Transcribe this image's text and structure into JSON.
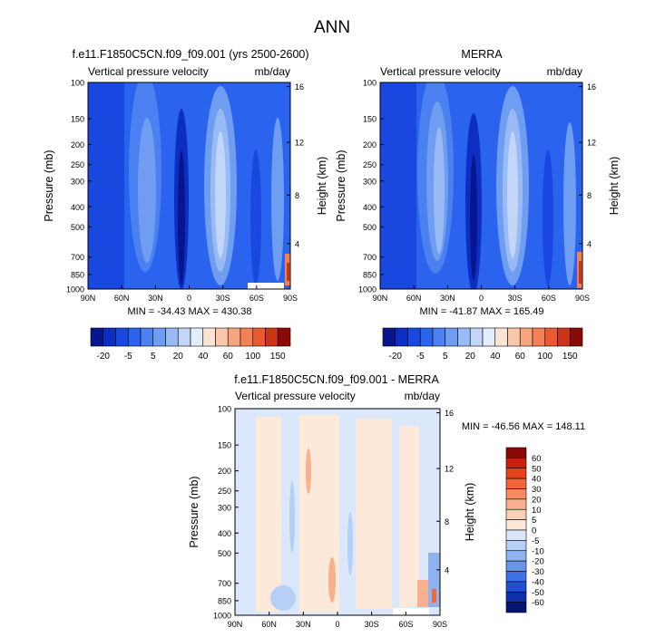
{
  "page_title": "ANN",
  "chart_data": [
    {
      "type": "heatmap",
      "title": "f.e11.F1850C5CN.f09_f09.001 (yrs 2500-2600)",
      "left_label": "Vertical pressure velocity",
      "right_label": "mb/day",
      "ylabel": "Pressure (mb)",
      "y2label": "Height (km)",
      "x_ticks": [
        "90N",
        "60N",
        "30N",
        "0",
        "30S",
        "60S",
        "90S"
      ],
      "y_ticks": [
        "100",
        "150",
        "200",
        "250",
        "300",
        "400",
        "500",
        "700",
        "850",
        "1000"
      ],
      "y2_ticks": [
        "16",
        "12",
        "8",
        "4"
      ],
      "stats": "MIN = -34.43  MAX = 430.38",
      "colorbar_labels": [
        "-20",
        "-5",
        "5",
        "20",
        "40",
        "60",
        "100",
        "150"
      ]
    },
    {
      "type": "heatmap",
      "title": "MERRA",
      "left_label": "Vertical pressure velocity",
      "right_label": "mb/day",
      "ylabel": "Pressure (mb)",
      "y2label": "Height (km)",
      "x_ticks": [
        "90N",
        "60N",
        "30N",
        "0",
        "30S",
        "60S",
        "90S"
      ],
      "y_ticks": [
        "100",
        "150",
        "200",
        "250",
        "300",
        "400",
        "500",
        "700",
        "850",
        "1000"
      ],
      "y2_ticks": [
        "16",
        "12",
        "8",
        "4"
      ],
      "stats": "MIN = -41.87  MAX = 165.49",
      "colorbar_labels": [
        "-20",
        "-5",
        "5",
        "20",
        "40",
        "60",
        "100",
        "150"
      ]
    },
    {
      "type": "heatmap",
      "title": "f.e11.F1850C5CN.f09_f09.001 - MERRA",
      "left_label": "Vertical pressure velocity",
      "right_label": "mb/day",
      "ylabel": "Pressure (mb)",
      "y2label": "Height (km)",
      "x_ticks": [
        "90N",
        "60N",
        "30N",
        "0",
        "30S",
        "60S",
        "90S"
      ],
      "y_ticks": [
        "100",
        "150",
        "200",
        "250",
        "300",
        "400",
        "500",
        "700",
        "850",
        "1000"
      ],
      "y2_ticks": [
        "16",
        "12",
        "8",
        "4"
      ],
      "stats": "MIN = -46.56  MAX = 148.11",
      "colorbar_labels": [
        "60",
        "50",
        "40",
        "30",
        "20",
        "10",
        "5",
        "0",
        "-5",
        "-10",
        "-20",
        "-30",
        "-40",
        "-50",
        "-60"
      ]
    }
  ],
  "colors": {
    "abs_scale": [
      "#08158f",
      "#0c2fc2",
      "#1848e0",
      "#2a63ee",
      "#4a80f0",
      "#6f9df2",
      "#98bbf5",
      "#c2d7f8",
      "#e4edfb",
      "#fde4d2",
      "#f9c6aa",
      "#f7a57f",
      "#f48155",
      "#ea5a2e",
      "#cf3315",
      "#8a0a05"
    ],
    "diff_scale": [
      "#8a0a05",
      "#c8200d",
      "#e8421c",
      "#f5653a",
      "#f78c62",
      "#f9b08e",
      "#fbd0b5",
      "#fde9da",
      "#dbe8fb",
      "#b6cff6",
      "#8fb3f1",
      "#6795ec",
      "#3f72e4",
      "#1f4fd2",
      "#0e2eab",
      "#071673"
    ]
  }
}
